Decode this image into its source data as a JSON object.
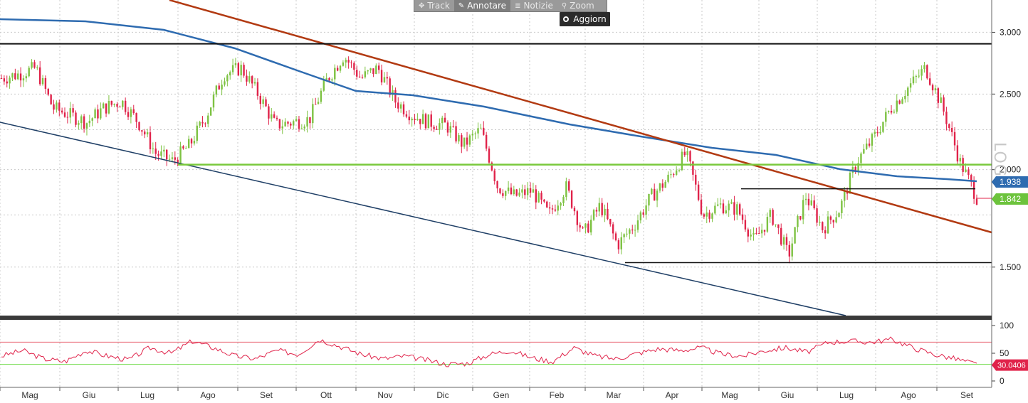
{
  "toolbar": {
    "items": [
      {
        "label": "Track",
        "icon": "crosshair-icon"
      },
      {
        "label": "Annotare",
        "icon": "pencil-icon"
      },
      {
        "label": "Notizie",
        "icon": "news-icon"
      },
      {
        "label": "Zoom",
        "icon": "magnifier-icon"
      }
    ],
    "refresh_label": "Aggiorn",
    "log_label": "LOG"
  },
  "colors": {
    "up_candle": "#7dc242",
    "down_candle": "#e0234a",
    "ma": "#2e6bb0",
    "trend_down": "#b23a12",
    "channel": "#1f3f66",
    "support_green": "#79c93b",
    "rsi_line": "#e0234a",
    "rsi_upper": "#e8606e",
    "rsi_lower": "#6fdc4a",
    "badge_ma": "#2e6bb0",
    "badge_price": "#6cc33c",
    "badge_rsi": "#e0234a"
  },
  "chart_data": {
    "type": "candlestick",
    "scale": "log",
    "x_labels": [
      "Mag",
      "Giu",
      "Lug",
      "Ago",
      "Set",
      "Ott",
      "Nov",
      "Dic",
      "Gen",
      "Feb",
      "Mar",
      "Apr",
      "Mag",
      "Giu",
      "Lug",
      "Ago",
      "Set"
    ],
    "y_ticks": [
      "1.500",
      "2.000",
      "2.500",
      "3.000"
    ],
    "y_tick_values": [
      1.5,
      2.0,
      2.5,
      3.0
    ],
    "ylim": [
      1.3,
      3.3
    ],
    "close_approx": [
      2.62,
      2.65,
      2.7,
      2.4,
      2.35,
      2.3,
      2.4,
      2.45,
      2.3,
      2.1,
      2.05,
      2.15,
      2.35,
      2.65,
      2.7,
      2.5,
      2.28,
      2.3,
      2.32,
      2.6,
      2.8,
      2.62,
      2.7,
      2.45,
      2.35,
      2.3,
      2.28,
      2.15,
      2.25,
      1.9,
      1.85,
      1.88,
      1.75,
      1.9,
      1.65,
      1.8,
      1.6,
      1.7,
      1.85,
      1.95,
      2.1,
      1.75,
      1.8,
      1.78,
      1.62,
      1.75,
      1.55,
      1.85,
      1.68,
      1.78,
      2.05,
      2.2,
      2.4,
      2.55,
      2.7,
      2.4,
      2.05,
      1.842
    ],
    "series": [
      {
        "name": "",
        "last_value": "1.938"
      }
    ],
    "last_price": "1.842",
    "horizontal_levels": [
      2.9,
      2.03,
      1.89,
      1.52
    ],
    "rsi": {
      "y_ticks": [
        "100",
        "50",
        "0"
      ],
      "upper": 70,
      "lower": 30,
      "last_value": "30.0406",
      "values_approx": [
        45,
        55,
        40,
        35,
        55,
        45,
        38,
        60,
        50,
        72,
        60,
        45,
        40,
        55,
        48,
        75,
        62,
        48,
        40,
        45,
        38,
        30,
        32,
        48,
        55,
        42,
        35,
        60,
        45,
        40,
        50,
        58,
        55,
        60,
        48,
        45,
        55,
        60,
        52,
        70,
        72,
        70,
        75,
        60,
        48,
        40,
        30
      ]
    }
  }
}
